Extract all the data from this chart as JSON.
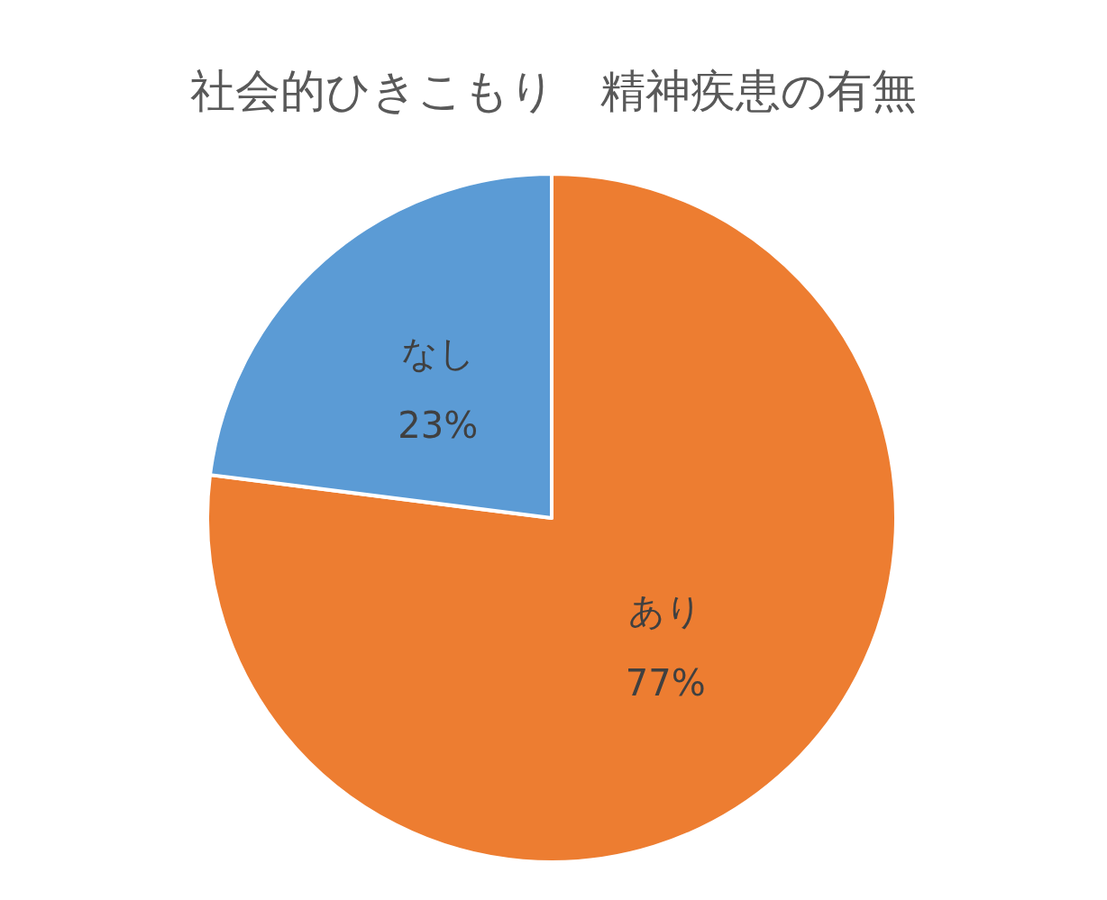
{
  "chart_data": {
    "type": "pie",
    "title": "社会的ひきこもり　精神疾患の有無",
    "categories": [
      "あり",
      "なし"
    ],
    "values": [
      77,
      23
    ],
    "colors": [
      "#ed7d31",
      "#5b9bd5"
    ],
    "value_labels": [
      "77%",
      "23%"
    ]
  }
}
